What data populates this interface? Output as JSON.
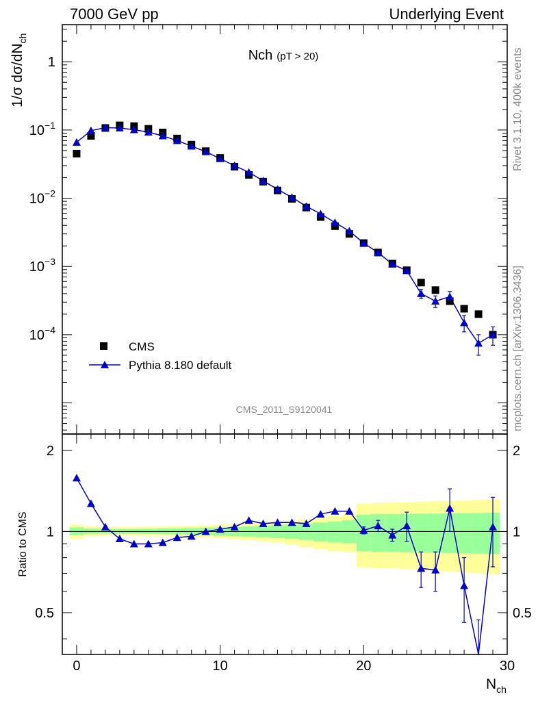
{
  "header": {
    "left": "7000 GeV pp",
    "right": "Underlying Event"
  },
  "side_labels": {
    "rivet": "Rivet 3.1.10,  400k events",
    "mcplots": "mcplots.cern.ch [arXiv:1306.3436]"
  },
  "chart_data": [
    {
      "type": "scatter",
      "panel": "main",
      "title": "Nch",
      "title_sub": "(pT > 20)",
      "watermark": "CMS_2011_S9120041",
      "ylabel": "1/σ dσ/dN",
      "ylabel_sub": "ch",
      "yscale": "log",
      "xlim": [
        -1,
        30
      ],
      "ylim": [
        3.5e-06,
        3.5
      ],
      "x_ticks": [
        0,
        10,
        20,
        30
      ],
      "y_ticks": [
        {
          "value": 1,
          "base": "1",
          "exp": ""
        },
        {
          "value": 0.1,
          "base": "10",
          "exp": "−1"
        },
        {
          "value": 0.01,
          "base": "10",
          "exp": "−2"
        },
        {
          "value": 0.001,
          "base": "10",
          "exp": "−3"
        },
        {
          "value": 0.0001,
          "base": "10",
          "exp": "−4"
        }
      ],
      "legend_position": "bottom-left",
      "series": [
        {
          "name": "CMS",
          "marker": "square",
          "color": "#000000",
          "x": [
            0,
            1,
            2,
            3,
            4,
            5,
            6,
            7,
            8,
            9,
            10,
            11,
            12,
            13,
            14,
            15,
            16,
            17,
            18,
            19,
            20,
            21,
            22,
            23,
            24,
            25,
            26,
            27,
            28,
            29
          ],
          "y": [
            0.045,
            0.082,
            0.107,
            0.117,
            0.114,
            0.104,
            0.092,
            0.075,
            0.061,
            0.049,
            0.039,
            0.029,
            0.022,
            0.0175,
            0.013,
            0.0098,
            0.0073,
            0.0053,
            0.0039,
            0.003,
            0.0022,
            0.0016,
            0.0011,
            0.00088,
            0.00058,
            0.00045,
            0.00031,
            0.00024,
            0.0002,
            0.0001
          ]
        },
        {
          "name": "Pythia 8.180 default",
          "marker": "triangle",
          "color": "#0000cc",
          "x": [
            0,
            1,
            2,
            3,
            4,
            5,
            6,
            7,
            8,
            9,
            10,
            11,
            12,
            13,
            14,
            15,
            16,
            17,
            18,
            19,
            20,
            21,
            22,
            23,
            24,
            25,
            26,
            27,
            28,
            29
          ],
          "y": [
            0.066,
            0.098,
            0.108,
            0.107,
            0.101,
            0.093,
            0.082,
            0.07,
            0.058,
            0.048,
            0.038,
            0.03,
            0.024,
            0.018,
            0.0135,
            0.0103,
            0.0076,
            0.0059,
            0.0044,
            0.0033,
            0.0022,
            0.0016,
            0.00108,
            0.00087,
            0.0004,
            0.00031,
            0.00036,
            0.00015,
            7.5e-05,
            0.0001
          ],
          "err": [
            0,
            0,
            0,
            0,
            0,
            0,
            0,
            0,
            0,
            0,
            0,
            0,
            0,
            0,
            0,
            0,
            0,
            0,
            0,
            0,
            0,
            0,
            0,
            0,
            6e-05,
            6e-05,
            7e-05,
            4e-05,
            2.5e-05,
            3e-05
          ]
        }
      ]
    },
    {
      "type": "scatter",
      "panel": "ratio",
      "ylabel": "Ratio to CMS",
      "xlabel": "N",
      "xlabel_sub": "ch",
      "xlim": [
        -1,
        30
      ],
      "ylim": [
        0.35,
        2.3
      ],
      "x_ticks": [
        0,
        10,
        20,
        30
      ],
      "y_ticks": [
        0.5,
        1,
        2
      ],
      "reference_line": 1,
      "bands": {
        "x": [
          -0.5,
          0.5,
          1.5,
          2.5,
          3.5,
          4.5,
          5.5,
          6.5,
          7.5,
          8.5,
          9.5,
          10.5,
          11.5,
          12.5,
          13.5,
          14.5,
          15.5,
          16.5,
          17.5,
          18.5,
          19.5,
          20.5,
          21.5,
          22.5,
          23.5,
          24.5,
          25.5,
          26.5,
          27.5,
          28.5,
          29.5
        ],
        "yellow_lo": [
          0.94,
          0.96,
          0.965,
          0.965,
          0.965,
          0.962,
          0.96,
          0.958,
          0.955,
          0.95,
          0.945,
          0.935,
          0.93,
          0.92,
          0.91,
          0.895,
          0.875,
          0.86,
          0.845,
          0.84,
          0.735,
          0.73,
          0.73,
          0.725,
          0.72,
          0.715,
          0.71,
          0.705,
          0.7,
          0.695
        ],
        "yellow_hi": [
          1.06,
          1.045,
          1.04,
          1.04,
          1.04,
          1.042,
          1.045,
          1.048,
          1.05,
          1.055,
          1.06,
          1.065,
          1.075,
          1.085,
          1.09,
          1.1,
          1.11,
          1.125,
          1.14,
          1.16,
          1.27,
          1.275,
          1.28,
          1.285,
          1.29,
          1.295,
          1.3,
          1.305,
          1.31,
          1.315
        ],
        "green_lo": [
          0.97,
          0.98,
          0.982,
          0.982,
          0.982,
          0.98,
          0.978,
          0.976,
          0.974,
          0.97,
          0.966,
          0.962,
          0.958,
          0.952,
          0.946,
          0.94,
          0.93,
          0.92,
          0.91,
          0.905,
          0.845,
          0.84,
          0.84,
          0.838,
          0.836,
          0.834,
          0.832,
          0.83,
          0.828,
          0.826
        ],
        "green_hi": [
          1.035,
          1.025,
          1.022,
          1.022,
          1.022,
          1.024,
          1.026,
          1.028,
          1.03,
          1.033,
          1.036,
          1.04,
          1.045,
          1.05,
          1.055,
          1.06,
          1.07,
          1.08,
          1.09,
          1.1,
          1.155,
          1.16,
          1.16,
          1.162,
          1.164,
          1.166,
          1.168,
          1.17,
          1.172,
          1.174
        ]
      },
      "series": [
        {
          "name": "Pythia 8.180 default",
          "marker": "triangle",
          "color": "#0000cc",
          "x": [
            0,
            1,
            2,
            3,
            4,
            5,
            6,
            7,
            8,
            9,
            10,
            11,
            12,
            13,
            14,
            15,
            16,
            17,
            18,
            19,
            20,
            21,
            22,
            23,
            24,
            25,
            26,
            27,
            28,
            29
          ],
          "y": [
            1.58,
            1.27,
            1.04,
            0.94,
            0.9,
            0.9,
            0.91,
            0.95,
            0.96,
            1.0,
            1.02,
            1.04,
            1.1,
            1.07,
            1.08,
            1.08,
            1.07,
            1.16,
            1.19,
            1.19,
            1.01,
            1.05,
            0.97,
            1.05,
            0.73,
            0.72,
            1.22,
            0.63,
            0.34,
            1.04
          ],
          "err": [
            0,
            0,
            0,
            0,
            0,
            0,
            0,
            0,
            0,
            0,
            0,
            0,
            0,
            0,
            0,
            0,
            0,
            0,
            0,
            0,
            0.03,
            0.05,
            0.05,
            0.13,
            0.11,
            0.12,
            0.22,
            0.17,
            0.13,
            0.3
          ]
        }
      ]
    }
  ]
}
